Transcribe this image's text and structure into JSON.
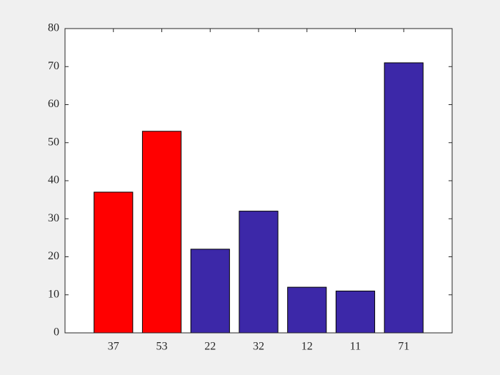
{
  "chart_data": {
    "type": "bar",
    "categories": [
      "37",
      "53",
      "22",
      "32",
      "12",
      "11",
      "71"
    ],
    "values": [
      37,
      53,
      22,
      32,
      12,
      11,
      71
    ],
    "colors": [
      "#ff0000",
      "#ff0000",
      "#3c28a8",
      "#3c28a8",
      "#3c28a8",
      "#3c28a8",
      "#3c28a8"
    ],
    "ylim": [
      0,
      80
    ],
    "yticks": [
      0,
      10,
      20,
      30,
      40,
      50,
      60,
      70,
      80
    ],
    "grid": false
  }
}
